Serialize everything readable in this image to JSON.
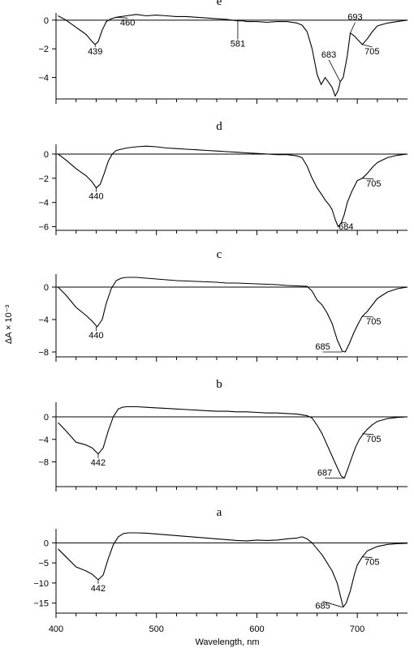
{
  "figure": {
    "xlabel": "Wavelength, nm",
    "ylabel": "ΔA × 10⁻³",
    "x_tick_labels": [
      "400",
      "500",
      "600",
      "700"
    ]
  },
  "chart_data": [
    {
      "type": "line",
      "panel": "e",
      "xlim": [
        400,
        750
      ],
      "ylim": [
        -5.5,
        0.5
      ],
      "yticks": [
        0,
        -2,
        -4
      ],
      "x": [
        402,
        410,
        420,
        430,
        436,
        439,
        442,
        446,
        450,
        455,
        460,
        470,
        480,
        490,
        500,
        510,
        520,
        530,
        540,
        550,
        560,
        570,
        575,
        581,
        586,
        590,
        600,
        610,
        620,
        630,
        640,
        645,
        650,
        655,
        660,
        664,
        668,
        672,
        675,
        678,
        681,
        683,
        686,
        690,
        693,
        697,
        701,
        705,
        710,
        715,
        720,
        730,
        740,
        750
      ],
      "y": [
        0.3,
        0.0,
        -0.5,
        -1.0,
        -1.5,
        -1.7,
        -1.5,
        -0.7,
        -0.1,
        0.1,
        0.2,
        0.3,
        0.4,
        0.3,
        0.35,
        0.3,
        0.25,
        0.25,
        0.2,
        0.15,
        0.1,
        0.05,
        0.0,
        -0.05,
        -0.05,
        -0.1,
        -0.1,
        -0.15,
        -0.1,
        -0.1,
        -0.2,
        -0.35,
        -0.8,
        -2.0,
        -3.8,
        -4.5,
        -4.0,
        -4.4,
        -4.7,
        -5.3,
        -4.9,
        -4.3,
        -4.0,
        -2.5,
        -0.9,
        -1.1,
        -1.4,
        -1.7,
        -1.3,
        -0.8,
        -0.4,
        -0.2,
        -0.1,
        0.0
      ],
      "annotations": [
        {
          "text": "439",
          "x": 439,
          "y": -1.7,
          "dx": 0,
          "dy": 12
        },
        {
          "text": "460",
          "x": 460,
          "y": 0.2,
          "dx": 14,
          "dy": 10
        },
        {
          "text": "581",
          "x": 581,
          "y": -0.05,
          "dx": 0,
          "dy": 32
        },
        {
          "text": "683",
          "x": 683,
          "y": -4.3,
          "dx": -14,
          "dy": -30
        },
        {
          "text": "693",
          "x": 693,
          "y": -0.9,
          "dx": 6,
          "dy": -16
        },
        {
          "text": "705",
          "x": 705,
          "y": -1.7,
          "dx": 12,
          "dy": 12
        }
      ]
    },
    {
      "type": "line",
      "panel": "d",
      "xlim": [
        400,
        750
      ],
      "ylim": [
        -6.3,
        0.8
      ],
      "yticks": [
        0,
        -2,
        -4,
        -6
      ],
      "x": [
        402,
        410,
        420,
        430,
        436,
        440,
        444,
        448,
        452,
        456,
        460,
        470,
        480,
        490,
        500,
        510,
        520,
        530,
        540,
        550,
        560,
        570,
        580,
        590,
        600,
        610,
        620,
        630,
        640,
        645,
        650,
        655,
        660,
        665,
        668,
        672,
        675,
        678,
        681,
        684,
        687,
        690,
        695,
        700,
        705,
        710,
        715,
        720,
        730,
        740,
        750
      ],
      "y": [
        0.0,
        -0.5,
        -1.2,
        -1.8,
        -2.3,
        -2.8,
        -2.5,
        -1.6,
        -0.6,
        0.0,
        0.3,
        0.5,
        0.6,
        0.65,
        0.6,
        0.5,
        0.45,
        0.4,
        0.35,
        0.3,
        0.25,
        0.2,
        0.15,
        0.1,
        0.05,
        0.0,
        -0.05,
        -0.05,
        -0.15,
        -0.3,
        -1.0,
        -2.0,
        -2.8,
        -3.4,
        -3.8,
        -4.2,
        -4.6,
        -5.4,
        -6.0,
        -5.7,
        -5.0,
        -4.0,
        -3.0,
        -2.2,
        -2.0,
        -1.6,
        -1.1,
        -0.7,
        -0.3,
        -0.1,
        0.0
      ],
      "annotations": [
        {
          "text": "440",
          "x": 440,
          "y": -2.8,
          "dx": 0,
          "dy": 14
        },
        {
          "text": "705",
          "x": 705,
          "y": -2.0,
          "dx": 14,
          "dy": 10
        },
        {
          "text": "684",
          "x": 684,
          "y": -5.7,
          "dx": 6,
          "dy": 8
        }
      ]
    },
    {
      "type": "line",
      "panel": "c",
      "xlim": [
        400,
        750
      ],
      "ylim": [
        -8.6,
        1.6
      ],
      "yticks": [
        0,
        -4,
        -8
      ],
      "x": [
        402,
        410,
        420,
        430,
        436,
        441,
        446,
        450,
        455,
        460,
        465,
        470,
        480,
        490,
        500,
        510,
        520,
        530,
        540,
        550,
        560,
        570,
        580,
        590,
        600,
        610,
        620,
        630,
        640,
        650,
        655,
        660,
        665,
        670,
        675,
        680,
        685,
        688,
        692,
        697,
        701,
        705,
        710,
        715,
        720,
        730,
        740,
        750
      ],
      "y": [
        0.0,
        -1.0,
        -2.5,
        -3.5,
        -4.2,
        -4.9,
        -4.0,
        -2.0,
        -0.2,
        0.8,
        1.1,
        1.2,
        1.2,
        1.1,
        1.0,
        0.9,
        0.8,
        0.75,
        0.7,
        0.65,
        0.6,
        0.5,
        0.5,
        0.45,
        0.4,
        0.35,
        0.3,
        0.2,
        0.15,
        0.1,
        -0.5,
        -1.6,
        -2.2,
        -3.2,
        -4.5,
        -6.5,
        -7.9,
        -8.0,
        -7.0,
        -5.5,
        -4.5,
        -3.6,
        -3.0,
        -2.2,
        -1.4,
        -0.6,
        -0.2,
        0.0
      ],
      "annotations": [
        {
          "text": "440",
          "x": 440,
          "y": -4.9,
          "dx": 0,
          "dy": 14
        },
        {
          "text": "705",
          "x": 705,
          "y": -3.6,
          "dx": 14,
          "dy": 10
        },
        {
          "text": "685",
          "x": 685,
          "y": -8.0,
          "dx": -24,
          "dy": -3
        }
      ]
    },
    {
      "type": "line",
      "panel": "b",
      "xlim": [
        400,
        750
      ],
      "ylim": [
        -12.4,
        2.6
      ],
      "yticks": [
        0,
        -4,
        -8
      ],
      "x": [
        402,
        410,
        420,
        430,
        436,
        442,
        447,
        452,
        457,
        462,
        466,
        470,
        480,
        490,
        500,
        510,
        520,
        530,
        540,
        550,
        560,
        570,
        580,
        590,
        600,
        610,
        620,
        630,
        640,
        650,
        655,
        660,
        665,
        670,
        675,
        680,
        684,
        687,
        690,
        694,
        698,
        702,
        706,
        710,
        715,
        720,
        730,
        740,
        750
      ],
      "y": [
        -1.0,
        -2.5,
        -4.5,
        -5.0,
        -5.5,
        -6.6,
        -5.5,
        -2.5,
        0.0,
        1.4,
        1.7,
        1.8,
        1.8,
        1.7,
        1.6,
        1.5,
        1.4,
        1.3,
        1.2,
        1.1,
        1.0,
        1.0,
        0.9,
        0.9,
        0.8,
        0.7,
        0.7,
        0.6,
        0.5,
        0.2,
        -0.2,
        -1.5,
        -3.0,
        -5.0,
        -7.0,
        -9.0,
        -10.5,
        -10.9,
        -9.5,
        -7.5,
        -5.5,
        -4.0,
        -3.0,
        -2.2,
        -1.4,
        -0.8,
        -0.3,
        -0.1,
        0.0
      ],
      "annotations": [
        {
          "text": "442",
          "x": 442,
          "y": -6.6,
          "dx": 0,
          "dy": 14
        },
        {
          "text": "705",
          "x": 705,
          "y": -3.0,
          "dx": 14,
          "dy": 10
        },
        {
          "text": "687",
          "x": 687,
          "y": -10.9,
          "dx": -24,
          "dy": -3
        }
      ]
    },
    {
      "type": "line",
      "panel": "a",
      "xlim": [
        400,
        750
      ],
      "ylim": [
        -17.5,
        3.5
      ],
      "yticks": [
        0,
        -5,
        -10,
        -15
      ],
      "x": [
        402,
        410,
        420,
        430,
        436,
        442,
        447,
        452,
        457,
        462,
        467,
        472,
        480,
        490,
        500,
        510,
        520,
        530,
        540,
        550,
        560,
        570,
        580,
        590,
        600,
        610,
        620,
        630,
        640,
        645,
        650,
        655,
        660,
        665,
        670,
        675,
        680,
        684,
        686,
        689,
        693,
        697,
        700,
        705,
        710,
        720,
        730,
        740,
        750
      ],
      "y": [
        -1.5,
        -3.5,
        -6.0,
        -7.0,
        -7.8,
        -9.2,
        -8.0,
        -4.0,
        -0.5,
        1.5,
        2.3,
        2.5,
        2.5,
        2.4,
        2.2,
        2.0,
        1.8,
        1.6,
        1.4,
        1.2,
        1.0,
        0.8,
        0.6,
        0.5,
        0.7,
        0.6,
        0.7,
        1.0,
        1.2,
        1.5,
        1.0,
        0.0,
        -1.5,
        -3.0,
        -5.0,
        -7.0,
        -10.0,
        -14.0,
        -16.0,
        -15.0,
        -12.0,
        -8.0,
        -5.5,
        -3.5,
        -2.0,
        -0.9,
        -0.4,
        -0.2,
        -0.1
      ],
      "annotations": [
        {
          "text": "442",
          "x": 442,
          "y": -9.2,
          "dx": 0,
          "dy": 14
        },
        {
          "text": "705",
          "x": 705,
          "y": -3.5,
          "dx": 12,
          "dy": 10
        },
        {
          "text": "685",
          "x": 685,
          "y": -16.0,
          "dx": -24,
          "dy": 2
        }
      ]
    }
  ]
}
